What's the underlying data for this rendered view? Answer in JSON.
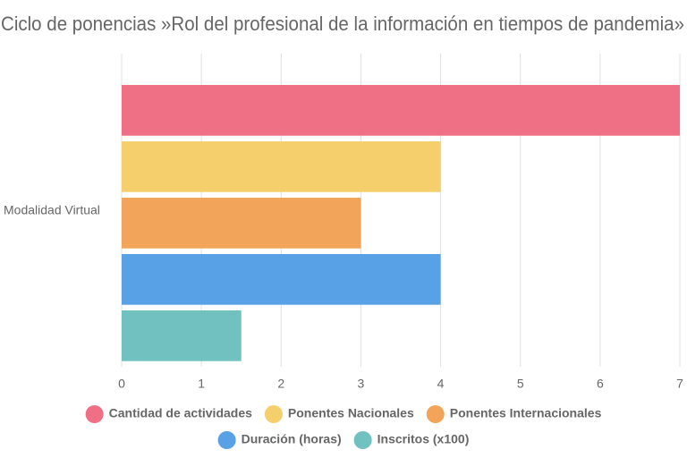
{
  "chart_data": {
    "type": "hbar",
    "title": "Ciclo de ponencias »Rol del profesional de la información en tiempos de pandemia»",
    "categories": [
      "Modalidad Virtual"
    ],
    "series": [
      {
        "name": "Cantidad de actividades",
        "color": "#ef6f84",
        "values": [
          7
        ]
      },
      {
        "name": "Ponentes Nacionales",
        "color": "#f6cf6d",
        "values": [
          4
        ]
      },
      {
        "name": "Ponentes Internacionales",
        "color": "#f2a55a",
        "values": [
          3
        ]
      },
      {
        "name": "Duración (horas)",
        "color": "#58a1e6",
        "values": [
          4
        ]
      },
      {
        "name": "Inscritos (x100)",
        "color": "#70c1bf",
        "values": [
          1.5
        ]
      }
    ],
    "xlim": [
      0,
      7
    ],
    "xticks": [
      0,
      1,
      2,
      3,
      4,
      5,
      6,
      7
    ],
    "grid": true,
    "legend": "bottom"
  }
}
